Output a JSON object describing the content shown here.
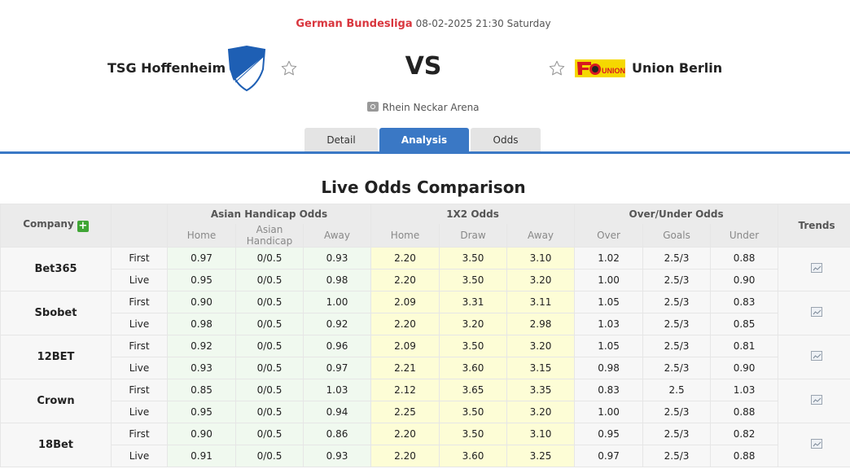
{
  "match": {
    "league": "German Bundesliga",
    "datetime": "08-02-2025 21:30 Saturday",
    "home_team": "TSG Hoffenheim",
    "away_team": "Union Berlin",
    "vs_label": "VS",
    "venue": "Rhein Neckar Arena",
    "icons": {
      "home_logo": "hoffenheim-crest",
      "away_logo": "union-berlin-crest",
      "favorite": "star-outline-icon",
      "venue": "stadium-icon"
    }
  },
  "tabs": [
    {
      "label": "Detail",
      "active": false
    },
    {
      "label": "Analysis",
      "active": true
    },
    {
      "label": "Odds",
      "active": false
    }
  ],
  "section_title": "Live Odds Comparison",
  "table": {
    "headers": {
      "company": "Company",
      "asian_handicap": "Asian Handicap Odds",
      "x12": "1X2 Odds",
      "over_under": "Over/Under Odds",
      "trends": "Trends"
    },
    "subheaders": {
      "ah": [
        "Home",
        "Asian Handicap",
        "Away"
      ],
      "x12": [
        "Home",
        "Draw",
        "Away"
      ],
      "ou": [
        "Over",
        "Goals",
        "Under"
      ]
    },
    "rows": [
      {
        "company": "Bet365",
        "first": {
          "kind": "First",
          "ah": [
            "0.97",
            "0/0.5",
            "0.93"
          ],
          "x12": [
            "2.20",
            "3.50",
            "3.10"
          ],
          "ou": [
            "1.02",
            "2.5/3",
            "0.88"
          ]
        },
        "live": {
          "kind": "Live",
          "ah": [
            "0.95",
            "0/0.5",
            "0.98"
          ],
          "x12": [
            "2.20",
            "3.50",
            "3.20"
          ],
          "ou": [
            "1.00",
            "2.5/3",
            "0.90"
          ]
        }
      },
      {
        "company": "Sbobet",
        "first": {
          "kind": "First",
          "ah": [
            "0.90",
            "0/0.5",
            "1.00"
          ],
          "x12": [
            "2.09",
            "3.31",
            "3.11"
          ],
          "ou": [
            "1.05",
            "2.5/3",
            "0.83"
          ]
        },
        "live": {
          "kind": "Live",
          "ah": [
            "0.98",
            "0/0.5",
            "0.92"
          ],
          "x12": [
            "2.20",
            "3.20",
            "2.98"
          ],
          "ou": [
            "1.03",
            "2.5/3",
            "0.85"
          ]
        }
      },
      {
        "company": "12BET",
        "first": {
          "kind": "First",
          "ah": [
            "0.92",
            "0/0.5",
            "0.96"
          ],
          "x12": [
            "2.09",
            "3.50",
            "3.20"
          ],
          "ou": [
            "1.05",
            "2.5/3",
            "0.81"
          ]
        },
        "live": {
          "kind": "Live",
          "ah": [
            "0.93",
            "0/0.5",
            "0.97"
          ],
          "x12": [
            "2.21",
            "3.60",
            "3.15"
          ],
          "ou": [
            "0.98",
            "2.5/3",
            "0.90"
          ]
        }
      },
      {
        "company": "Crown",
        "first": {
          "kind": "First",
          "ah": [
            "0.85",
            "0/0.5",
            "1.03"
          ],
          "x12": [
            "2.12",
            "3.65",
            "3.35"
          ],
          "ou": [
            "0.83",
            "2.5",
            "1.03"
          ]
        },
        "live": {
          "kind": "Live",
          "ah": [
            "0.95",
            "0/0.5",
            "0.94"
          ],
          "x12": [
            "2.25",
            "3.50",
            "3.20"
          ],
          "ou": [
            "1.00",
            "2.5/3",
            "0.88"
          ]
        }
      },
      {
        "company": "18Bet",
        "first": {
          "kind": "First",
          "ah": [
            "0.90",
            "0/0.5",
            "0.86"
          ],
          "x12": [
            "2.20",
            "3.50",
            "3.10"
          ],
          "ou": [
            "0.95",
            "2.5/3",
            "0.82"
          ]
        },
        "live": {
          "kind": "Live",
          "ah": [
            "0.91",
            "0/0.5",
            "0.93"
          ],
          "x12": [
            "2.20",
            "3.60",
            "3.25"
          ],
          "ou": [
            "0.97",
            "2.5/3",
            "0.88"
          ]
        }
      }
    ]
  },
  "colors": {
    "accent_blue": "#3a78c5",
    "league_red": "#d9363e",
    "ah_bg": "#f0f9ef",
    "x12_bg": "#fdfdd6",
    "header_bg": "#ebebeb",
    "plus_green": "#3fa535"
  }
}
